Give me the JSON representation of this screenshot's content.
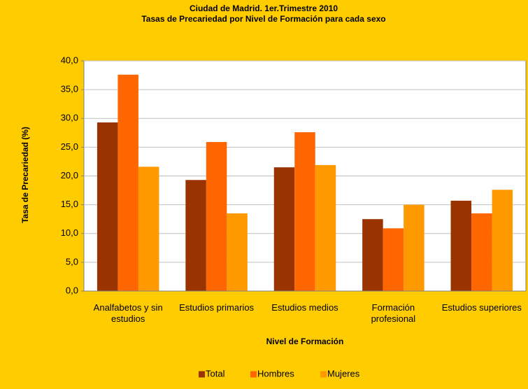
{
  "chart_data": {
    "type": "bar",
    "title": "Ciudad de Madrid. 1er.Trimestre 2010",
    "subtitle": "Tasas de Precariedad por Nivel de Formación para cada sexo",
    "y_label": "Tasa de Precariedad (%)",
    "x_label": "Nivel de Formación",
    "categories": [
      "Analfabetos y sin estudios",
      "Estudios primarios",
      "Estudios medios",
      "Formación profesional",
      "Estudios superiores"
    ],
    "series": [
      {
        "name": "Total",
        "color": "#993300",
        "values": [
          29.3,
          19.3,
          21.5,
          12.5,
          15.7
        ]
      },
      {
        "name": "Hombres",
        "color": "#ff6600",
        "values": [
          37.6,
          25.9,
          27.6,
          10.9,
          13.5
        ]
      },
      {
        "name": "Mujeres",
        "color": "#ff9900",
        "values": [
          21.6,
          13.5,
          21.9,
          15.0,
          17.6
        ]
      }
    ],
    "ylim": [
      0,
      40
    ],
    "yticks": [
      {
        "value": 0,
        "label": "0,0"
      },
      {
        "value": 5,
        "label": "5,0"
      },
      {
        "value": 10,
        "label": "10,0"
      },
      {
        "value": 15,
        "label": "15,0"
      },
      {
        "value": 20,
        "label": "20,0"
      },
      {
        "value": 25,
        "label": "25,0"
      },
      {
        "value": 30,
        "label": "30,0"
      },
      {
        "value": 35,
        "label": "35,0"
      },
      {
        "value": 40,
        "label": "40,0"
      }
    ],
    "grid": true,
    "legend": "bottom"
  }
}
